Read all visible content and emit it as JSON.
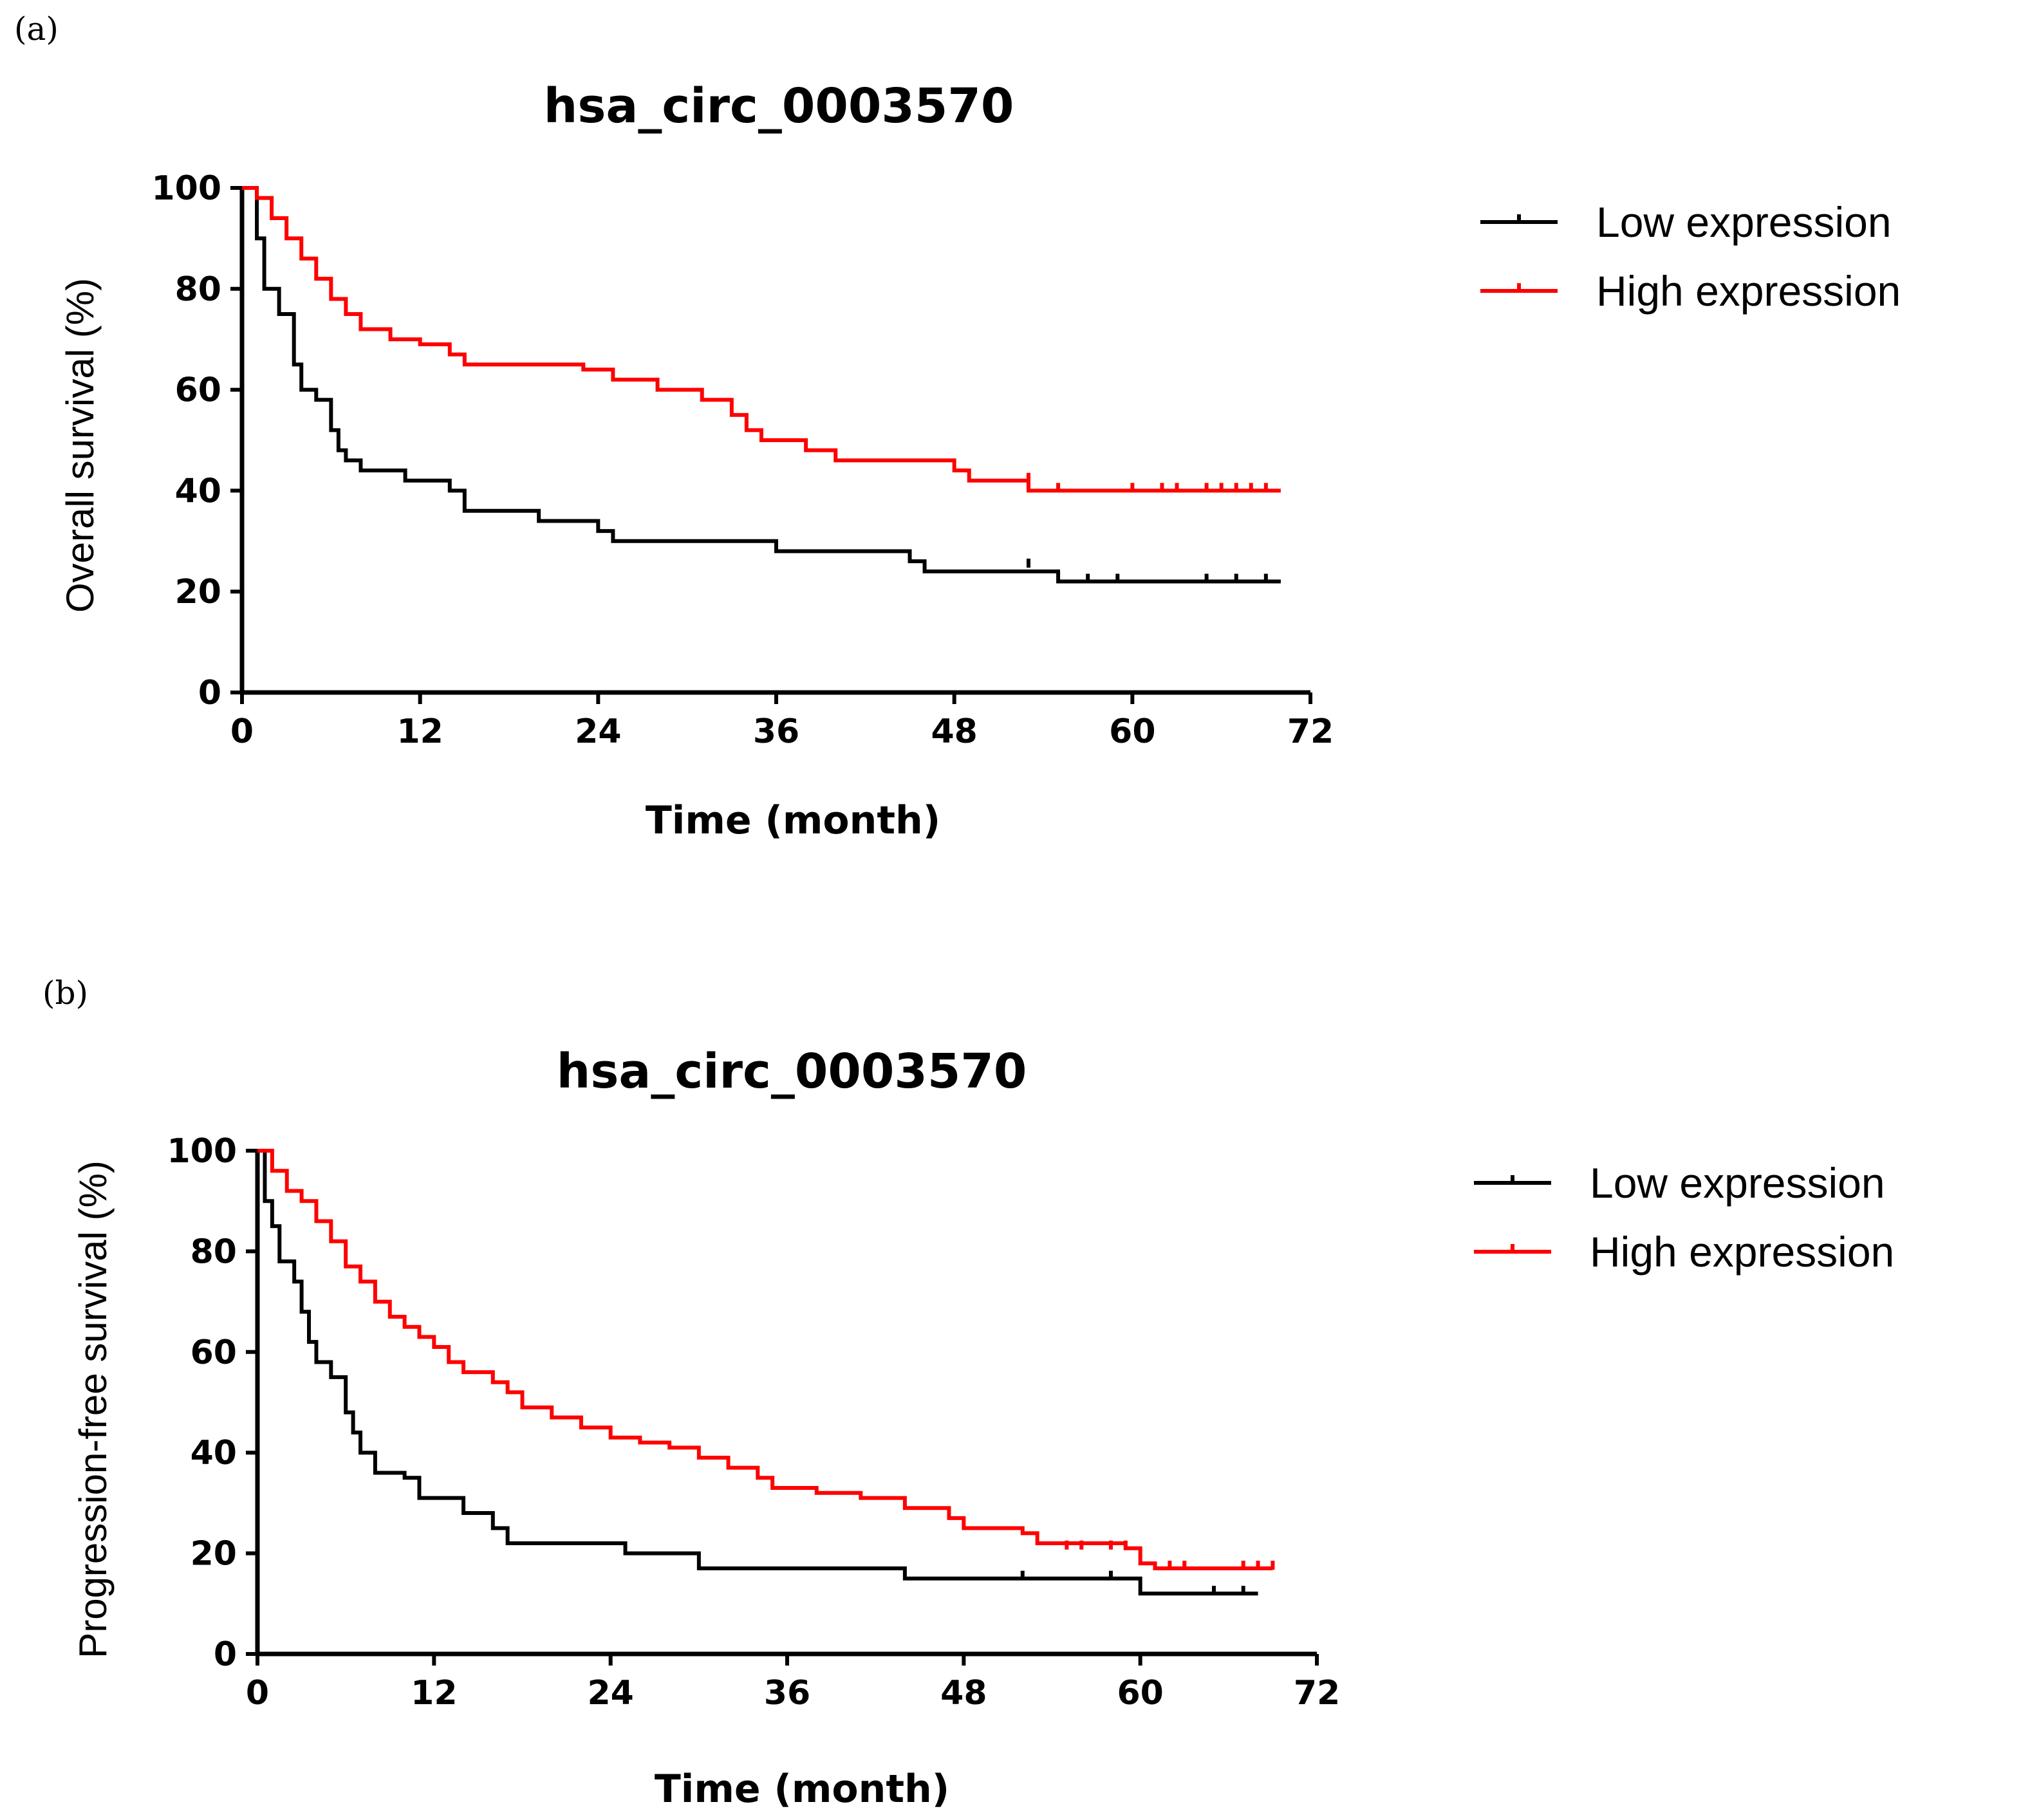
{
  "chart_data": [
    {
      "type": "line",
      "panel_label": "(a)",
      "title": "hsa_circ_0003570",
      "xlabel": "Time (month)",
      "ylabel": "Overall survival (%)",
      "xlim": [
        0,
        72
      ],
      "ylim": [
        0,
        100
      ],
      "xticks": [
        "0",
        "12",
        "24",
        "36",
        "48",
        "60",
        "72"
      ],
      "yticks": [
        "0",
        "20",
        "40",
        "60",
        "80",
        "100"
      ],
      "grid": false,
      "legend_position": "right",
      "series": [
        {
          "name": "Low expression",
          "color": "#000000",
          "steps": [
            [
              0,
              100
            ],
            [
              1,
              90
            ],
            [
              1.5,
              80
            ],
            [
              2.5,
              75
            ],
            [
              3.5,
              65
            ],
            [
              4,
              60
            ],
            [
              5,
              58
            ],
            [
              6,
              52
            ],
            [
              6.5,
              48
            ],
            [
              7,
              46
            ],
            [
              8,
              44
            ],
            [
              11,
              42
            ],
            [
              14,
              40
            ],
            [
              15,
              36
            ],
            [
              20,
              34
            ],
            [
              24,
              32
            ],
            [
              25,
              30
            ],
            [
              36,
              28
            ],
            [
              45,
              26
            ],
            [
              46,
              24
            ],
            [
              55,
              22
            ],
            [
              70,
              22
            ]
          ],
          "censored": [
            [
              53,
              25
            ],
            [
              57,
              22
            ],
            [
              59,
              22
            ],
            [
              65,
              22
            ],
            [
              67,
              22
            ],
            [
              69,
              22
            ]
          ]
        },
        {
          "name": "High expression",
          "color": "#ff0000",
          "steps": [
            [
              0,
              100
            ],
            [
              1,
              98
            ],
            [
              2,
              94
            ],
            [
              3,
              90
            ],
            [
              4,
              86
            ],
            [
              5,
              82
            ],
            [
              6,
              78
            ],
            [
              7,
              75
            ],
            [
              8,
              72
            ],
            [
              10,
              70
            ],
            [
              12,
              69
            ],
            [
              14,
              67
            ],
            [
              15,
              65
            ],
            [
              22,
              65
            ],
            [
              23,
              64
            ],
            [
              25,
              62
            ],
            [
              28,
              60
            ],
            [
              31,
              58
            ],
            [
              33,
              55
            ],
            [
              34,
              52
            ],
            [
              35,
              50
            ],
            [
              38,
              48
            ],
            [
              40,
              46
            ],
            [
              48,
              44
            ],
            [
              49,
              42
            ],
            [
              53,
              40
            ],
            [
              70,
              40
            ]
          ],
          "censored": [
            [
              53,
              42
            ],
            [
              55,
              40
            ],
            [
              60,
              40
            ],
            [
              62,
              40
            ],
            [
              63,
              40
            ],
            [
              65,
              40
            ],
            [
              66,
              40
            ],
            [
              67,
              40
            ],
            [
              68,
              40
            ],
            [
              69,
              40
            ]
          ]
        }
      ]
    },
    {
      "type": "line",
      "panel_label": "(b)",
      "title": "hsa_circ_0003570",
      "xlabel": "Time (month)",
      "ylabel": "Progression-free survival (%)",
      "xlim": [
        0,
        72
      ],
      "ylim": [
        0,
        100
      ],
      "xticks": [
        "0",
        "12",
        "24",
        "36",
        "48",
        "60",
        "72"
      ],
      "yticks": [
        "0",
        "20",
        "40",
        "60",
        "80",
        "100"
      ],
      "grid": false,
      "legend_position": "right",
      "series": [
        {
          "name": "Low expression",
          "color": "#000000",
          "steps": [
            [
              0,
              100
            ],
            [
              0.5,
              90
            ],
            [
              1,
              85
            ],
            [
              1.5,
              78
            ],
            [
              2.5,
              74
            ],
            [
              3,
              68
            ],
            [
              3.5,
              62
            ],
            [
              4,
              58
            ],
            [
              5,
              55
            ],
            [
              6,
              48
            ],
            [
              6.5,
              44
            ],
            [
              7,
              40
            ],
            [
              8,
              36
            ],
            [
              10,
              35
            ],
            [
              11,
              31
            ],
            [
              14,
              28
            ],
            [
              16,
              25
            ],
            [
              17,
              22
            ],
            [
              25,
              20
            ],
            [
              30,
              17
            ],
            [
              44,
              15
            ],
            [
              60,
              12
            ],
            [
              68,
              12
            ]
          ],
          "censored": [
            [
              52,
              15
            ],
            [
              58,
              15
            ],
            [
              65,
              12
            ],
            [
              67,
              12
            ]
          ]
        },
        {
          "name": "High expression",
          "color": "#ff0000",
          "steps": [
            [
              0,
              100
            ],
            [
              1,
              96
            ],
            [
              2,
              92
            ],
            [
              3,
              90
            ],
            [
              4,
              86
            ],
            [
              5,
              82
            ],
            [
              6,
              77
            ],
            [
              7,
              74
            ],
            [
              8,
              70
            ],
            [
              9,
              67
            ],
            [
              10,
              65
            ],
            [
              11,
              63
            ],
            [
              12,
              61
            ],
            [
              13,
              58
            ],
            [
              14,
              56
            ],
            [
              16,
              54
            ],
            [
              17,
              52
            ],
            [
              18,
              49
            ],
            [
              20,
              47
            ],
            [
              22,
              45
            ],
            [
              24,
              43
            ],
            [
              26,
              42
            ],
            [
              28,
              41
            ],
            [
              30,
              39
            ],
            [
              32,
              37
            ],
            [
              34,
              35
            ],
            [
              35,
              33
            ],
            [
              38,
              32
            ],
            [
              41,
              31
            ],
            [
              44,
              29
            ],
            [
              47,
              27
            ],
            [
              48,
              25
            ],
            [
              52,
              24
            ],
            [
              53,
              22
            ],
            [
              59,
              21
            ],
            [
              60,
              18
            ],
            [
              61,
              17
            ],
            [
              69,
              17
            ]
          ],
          "censored": [
            [
              55,
              21
            ],
            [
              56,
              21
            ],
            [
              58,
              21
            ],
            [
              59,
              21
            ],
            [
              62,
              17
            ],
            [
              63,
              17
            ],
            [
              67,
              17
            ],
            [
              68,
              17
            ],
            [
              69,
              17
            ]
          ]
        }
      ]
    }
  ]
}
